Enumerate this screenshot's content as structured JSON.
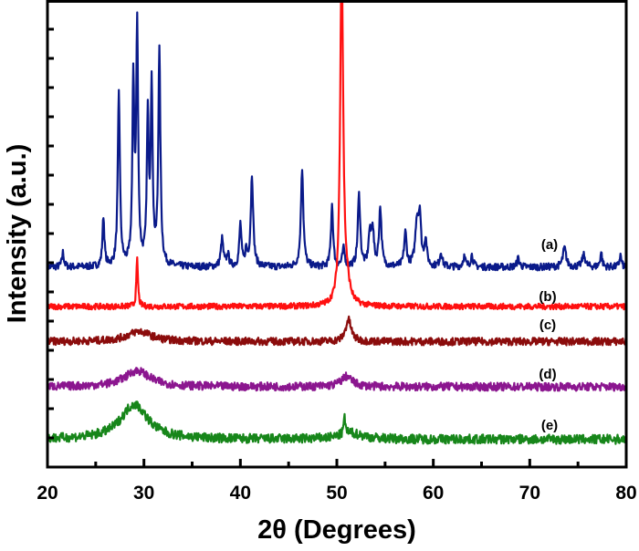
{
  "chart_data": {
    "type": "line",
    "xlabel": "2θ (Degrees)",
    "ylabel": "Intensity (a.u.)",
    "xlim": [
      20,
      80
    ],
    "ylim": [
      0,
      16
    ],
    "x_ticks": [
      20,
      30,
      40,
      50,
      60,
      70,
      80
    ],
    "y_tick_labels_shown": false,
    "grid": false,
    "legend": "none; curves labeled inline at right",
    "series": [
      {
        "label": "(a)",
        "color": "#0a1a8a",
        "baseline": 6.85,
        "noise": 0.12,
        "peaks": [
          [
            21.6,
            0.5,
            0.12
          ],
          [
            25.8,
            1.7,
            0.12
          ],
          [
            27.4,
            5.9,
            0.13
          ],
          [
            28.9,
            6.2,
            0.12
          ],
          [
            29.3,
            8.0,
            0.12
          ],
          [
            30.4,
            4.95,
            0.12
          ],
          [
            30.8,
            6.0,
            0.12
          ],
          [
            31.6,
            7.3,
            0.13
          ],
          [
            38.1,
            0.95,
            0.15
          ],
          [
            38.7,
            0.4,
            0.15
          ],
          [
            40.0,
            1.45,
            0.13
          ],
          [
            40.6,
            0.5,
            0.12
          ],
          [
            41.2,
            3.15,
            0.15
          ],
          [
            46.4,
            3.4,
            0.15
          ],
          [
            49.5,
            2.15,
            0.13
          ],
          [
            50.7,
            0.6,
            0.15
          ],
          [
            52.3,
            2.45,
            0.15
          ],
          [
            53.4,
            1.0,
            0.15
          ],
          [
            53.7,
            1.3,
            0.15
          ],
          [
            54.5,
            2.0,
            0.15
          ],
          [
            57.1,
            1.15,
            0.15
          ],
          [
            58.3,
            1.5,
            0.2
          ],
          [
            58.6,
            1.6,
            0.15
          ],
          [
            59.2,
            0.9,
            0.15
          ],
          [
            60.8,
            0.5,
            0.15
          ],
          [
            63.2,
            0.35,
            0.15
          ],
          [
            64.0,
            0.4,
            0.15
          ],
          [
            68.8,
            0.3,
            0.15
          ],
          [
            73.6,
            0.65,
            0.2
          ],
          [
            75.6,
            0.4,
            0.2
          ],
          [
            77.4,
            0.5,
            0.12
          ],
          [
            79.4,
            0.4,
            0.12
          ]
        ]
      },
      {
        "label": "(b)",
        "color": "#ff1010",
        "baseline": 5.5,
        "noise": 0.1,
        "peaks": [
          [
            29.3,
            1.6,
            0.1
          ],
          [
            50.5,
            12.0,
            0.18
          ],
          [
            51.0,
            0.6,
            0.4
          ]
        ]
      },
      {
        "label": "(c)",
        "color": "#8b0c0c",
        "baseline": 4.3,
        "noise": 0.13,
        "peaks": [
          [
            29.5,
            0.35,
            1.5
          ],
          [
            51.2,
            0.75,
            0.35
          ]
        ]
      },
      {
        "label": "(d)",
        "color": "#8b168f",
        "baseline": 2.75,
        "noise": 0.14,
        "peaks": [
          [
            29.3,
            0.55,
            1.6
          ],
          [
            51.0,
            0.35,
            0.7
          ]
        ]
      },
      {
        "label": "(e)",
        "color": "#17861a",
        "baseline": 0.95,
        "noise": 0.16,
        "peaks": [
          [
            29.0,
            1.2,
            1.7
          ],
          [
            50.8,
            0.55,
            0.12
          ],
          [
            51.5,
            0.2,
            1.5
          ]
        ]
      }
    ]
  }
}
